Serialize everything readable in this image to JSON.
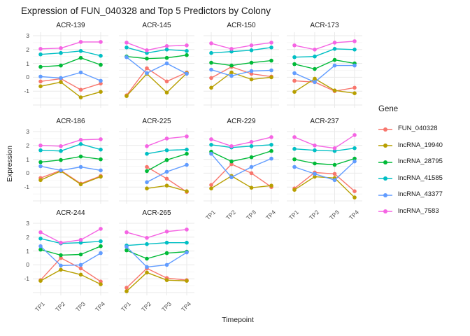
{
  "title": "Expression of FUN_040328 and Top 5 Predictors by Colony",
  "axes": {
    "x_label": "Timepoint",
    "y_label": "Expression",
    "x_ticks": [
      "TP1",
      "TP2",
      "TP3",
      "TP4"
    ],
    "y_ticks": [
      3,
      2,
      1,
      0,
      -1
    ]
  },
  "legend": {
    "title": "Gene",
    "entries": [
      {
        "label": "FUN_040328",
        "color": "#F8766D"
      },
      {
        "label": "lncRNA_19940",
        "color": "#B79F00"
      },
      {
        "label": "lncRNA_28795",
        "color": "#00BA38"
      },
      {
        "label": "lncRNA_41585",
        "color": "#00BFC4"
      },
      {
        "label": "lncRNA_43377",
        "color": "#619CFF"
      },
      {
        "label": "lncRNA_7583",
        "color": "#F564E3"
      }
    ]
  },
  "chart_data": {
    "type": "line",
    "x": [
      "TP1",
      "TP2",
      "TP3",
      "TP4"
    ],
    "ylim": [
      -2.2,
      3.25
    ],
    "grid": true,
    "legend_position": "right",
    "series_colors": {
      "FUN_040328": "#F8766D",
      "lncRNA_19940": "#B79F00",
      "lncRNA_28795": "#00BA38",
      "lncRNA_41585": "#00BFC4",
      "lncRNA_43377": "#619CFF",
      "lncRNA_7583": "#F564E3"
    },
    "facets": [
      {
        "colony": "ACR-139",
        "series": [
          {
            "name": "FUN_040328",
            "values": [
              -0.3,
              -0.1,
              -0.9,
              -0.45
            ]
          },
          {
            "name": "lncRNA_19940",
            "values": [
              -0.65,
              -0.35,
              -1.45,
              -1.05
            ]
          },
          {
            "name": "lncRNA_28795",
            "values": [
              0.75,
              0.85,
              1.4,
              0.9
            ]
          },
          {
            "name": "lncRNA_41585",
            "values": [
              1.65,
              1.75,
              1.9,
              1.55
            ]
          },
          {
            "name": "lncRNA_43377",
            "values": [
              0.05,
              -0.05,
              0.35,
              -0.25
            ]
          },
          {
            "name": "lncRNA_7583",
            "values": [
              2.05,
              2.1,
              2.55,
              2.55
            ]
          }
        ]
      },
      {
        "colony": "ACR-145",
        "series": [
          {
            "name": "FUN_040328",
            "values": [
              -1.3,
              0.65,
              -0.3,
              0.35
            ]
          },
          {
            "name": "lncRNA_19940",
            "values": [
              -1.35,
              0.25,
              -1.1,
              0.3
            ]
          },
          {
            "name": "lncRNA_28795",
            "values": [
              1.5,
              1.35,
              1.4,
              1.6
            ]
          },
          {
            "name": "lncRNA_41585",
            "values": [
              2.15,
              1.75,
              2.0,
              1.9
            ]
          },
          {
            "name": "lncRNA_43377",
            "values": [
              1.45,
              0.3,
              1.0,
              0.25
            ]
          },
          {
            "name": "lncRNA_7583",
            "values": [
              2.5,
              1.95,
              2.25,
              2.3
            ]
          }
        ]
      },
      {
        "colony": "ACR-150",
        "series": [
          {
            "name": "FUN_040328",
            "values": [
              -0.05,
              0.75,
              0.25,
              0.05
            ]
          },
          {
            "name": "lncRNA_19940",
            "values": [
              -0.75,
              0.35,
              -0.15,
              0.0
            ]
          },
          {
            "name": "lncRNA_28795",
            "values": [
              1.05,
              0.85,
              1.05,
              1.2
            ]
          },
          {
            "name": "lncRNA_41585",
            "values": [
              1.75,
              1.85,
              1.95,
              2.15
            ]
          },
          {
            "name": "lncRNA_43377",
            "values": [
              0.55,
              0.1,
              0.45,
              0.5
            ]
          },
          {
            "name": "lncRNA_7583",
            "values": [
              2.45,
              2.05,
              2.3,
              2.5
            ]
          }
        ]
      },
      {
        "colony": "ACR-173",
        "series": [
          {
            "name": "FUN_040328",
            "values": [
              -0.25,
              -0.35,
              -1.0,
              -0.75
            ]
          },
          {
            "name": "lncRNA_19940",
            "values": [
              -1.05,
              -0.1,
              -0.95,
              -1.15
            ]
          },
          {
            "name": "lncRNA_28795",
            "values": [
              0.95,
              0.6,
              1.25,
              1.0
            ]
          },
          {
            "name": "lncRNA_41585",
            "values": [
              1.45,
              1.5,
              2.05,
              2.0
            ]
          },
          {
            "name": "lncRNA_43377",
            "values": [
              0.3,
              -0.35,
              0.85,
              0.85
            ]
          },
          {
            "name": "lncRNA_7583",
            "values": [
              2.3,
              2.0,
              2.5,
              2.6
            ]
          }
        ]
      },
      {
        "colony": "ACR-186",
        "series": [
          {
            "name": "FUN_040328",
            "values": [
              -0.35,
              0.2,
              -0.75,
              -0.2
            ]
          },
          {
            "name": "lncRNA_19940",
            "values": [
              -0.5,
              0.15,
              -0.8,
              -0.25
            ]
          },
          {
            "name": "lncRNA_28795",
            "values": [
              0.8,
              0.95,
              1.2,
              1.0
            ]
          },
          {
            "name": "lncRNA_41585",
            "values": [
              1.65,
              1.6,
              2.1,
              1.7
            ]
          },
          {
            "name": "lncRNA_43377",
            "values": [
              0.5,
              0.2,
              0.45,
              0.2
            ]
          },
          {
            "name": "lncRNA_7583",
            "values": [
              2.0,
              1.95,
              2.4,
              2.45
            ]
          }
        ]
      },
      {
        "colony": "ACR-225",
        "series": [
          {
            "name": "FUN_040328",
            "values": [
              null,
              0.45,
              -0.4,
              -1.35
            ]
          },
          {
            "name": "lncRNA_19940",
            "values": [
              null,
              -1.1,
              -0.9,
              -1.3
            ]
          },
          {
            "name": "lncRNA_28795",
            "values": [
              null,
              0.15,
              0.95,
              1.4
            ]
          },
          {
            "name": "lncRNA_41585",
            "values": [
              null,
              1.4,
              1.65,
              1.7
            ]
          },
          {
            "name": "lncRNA_43377",
            "values": [
              null,
              -0.65,
              0.1,
              0.6
            ]
          },
          {
            "name": "lncRNA_7583",
            "values": [
              null,
              1.95,
              2.5,
              2.65
            ]
          }
        ]
      },
      {
        "colony": "ACR-229",
        "series": [
          {
            "name": "FUN_040328",
            "values": [
              -0.85,
              0.65,
              0.0,
              -1.0
            ]
          },
          {
            "name": "lncRNA_19940",
            "values": [
              -1.1,
              -0.2,
              -1.05,
              -0.9
            ]
          },
          {
            "name": "lncRNA_28795",
            "values": [
              1.55,
              0.85,
              1.15,
              1.6
            ]
          },
          {
            "name": "lncRNA_41585",
            "values": [
              2.05,
              1.85,
              1.95,
              2.05
            ]
          },
          {
            "name": "lncRNA_43377",
            "values": [
              1.4,
              -0.3,
              0.45,
              1.05
            ]
          },
          {
            "name": "lncRNA_7583",
            "values": [
              2.45,
              1.95,
              2.25,
              2.6
            ]
          }
        ]
      },
      {
        "colony": "ACR-237",
        "series": [
          {
            "name": "FUN_040328",
            "values": [
              -1.1,
              0.05,
              -0.05,
              -1.3
            ]
          },
          {
            "name": "lncRNA_19940",
            "values": [
              -1.2,
              -0.25,
              -0.35,
              -1.75
            ]
          },
          {
            "name": "lncRNA_28795",
            "values": [
              1.0,
              0.7,
              0.6,
              1.05
            ]
          },
          {
            "name": "lncRNA_41585",
            "values": [
              1.75,
              1.65,
              1.6,
              1.8
            ]
          },
          {
            "name": "lncRNA_43377",
            "values": [
              0.45,
              -0.05,
              -0.5,
              0.85
            ]
          },
          {
            "name": "lncRNA_7583",
            "values": [
              2.6,
              2.0,
              1.8,
              2.75
            ]
          }
        ]
      },
      {
        "colony": "ACR-244",
        "series": [
          {
            "name": "FUN_040328",
            "values": [
              -1.1,
              0.5,
              -0.25,
              -1.2
            ]
          },
          {
            "name": "lncRNA_19940",
            "values": [
              -1.15,
              -0.35,
              -0.7,
              -1.4
            ]
          },
          {
            "name": "lncRNA_28795",
            "values": [
              1.1,
              0.7,
              0.75,
              1.35
            ]
          },
          {
            "name": "lncRNA_41585",
            "values": [
              1.9,
              1.55,
              1.6,
              1.7
            ]
          },
          {
            "name": "lncRNA_43377",
            "values": [
              1.35,
              -0.05,
              0.0,
              0.85
            ]
          },
          {
            "name": "lncRNA_7583",
            "values": [
              2.35,
              1.6,
              1.8,
              2.6
            ]
          }
        ]
      },
      {
        "colony": "ACR-265",
        "series": [
          {
            "name": "FUN_040328",
            "values": [
              -1.65,
              -0.25,
              -0.95,
              -1.1
            ]
          },
          {
            "name": "lncRNA_19940",
            "values": [
              -1.9,
              -0.55,
              -1.1,
              -1.15
            ]
          },
          {
            "name": "lncRNA_28795",
            "values": [
              1.05,
              0.45,
              0.85,
              0.95
            ]
          },
          {
            "name": "lncRNA_41585",
            "values": [
              1.4,
              1.5,
              1.6,
              1.6
            ]
          },
          {
            "name": "lncRNA_43377",
            "values": [
              1.3,
              -0.15,
              0.0,
              0.9
            ]
          },
          {
            "name": "lncRNA_7583",
            "values": [
              2.35,
              1.95,
              2.4,
              2.55
            ]
          }
        ]
      }
    ]
  }
}
